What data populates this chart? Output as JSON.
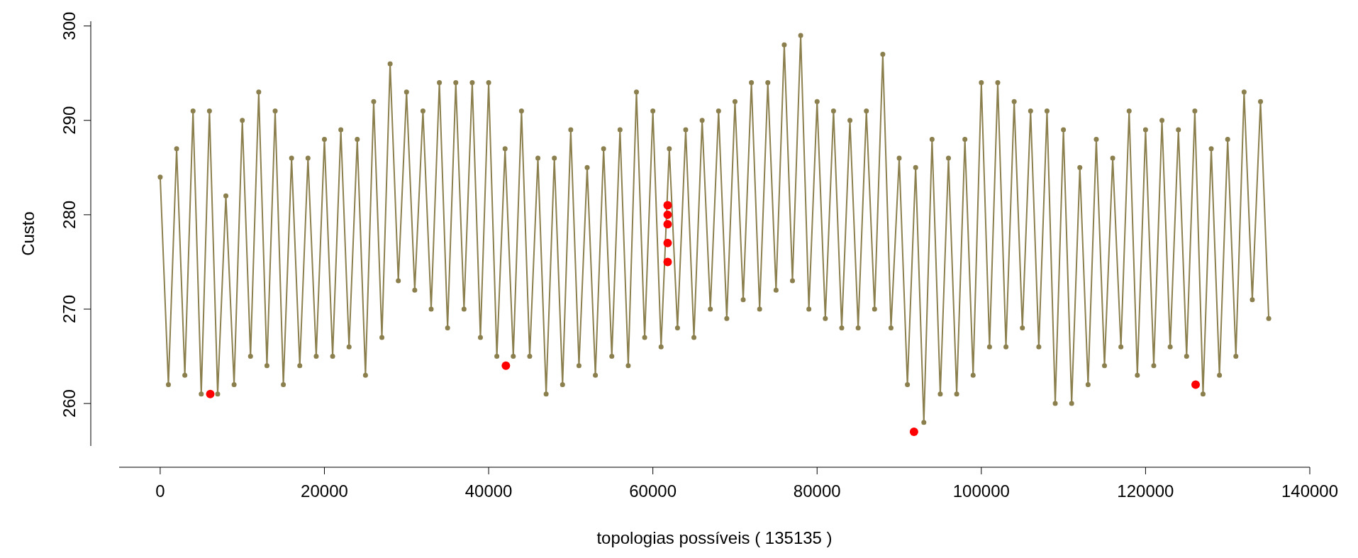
{
  "chart_data": {
    "type": "line",
    "xlabel": "topologias possíveis ( 135135 )",
    "ylabel": "Custo",
    "xlim": [
      -5000,
      140000
    ],
    "ylim": [
      255.5,
      300.5
    ],
    "xticks": [
      0,
      20000,
      40000,
      60000,
      80000,
      100000,
      120000,
      140000
    ],
    "yticks": [
      260,
      270,
      280,
      290,
      300
    ],
    "grid": false,
    "marker": "circle",
    "line_style": "solid",
    "series": [
      {
        "color": "#8b7f4d",
        "x": [
          0,
          1000,
          2000,
          3000,
          4000,
          5000,
          6000,
          7000,
          8000,
          9000,
          10000,
          11000,
          12000,
          13000,
          14000,
          15000,
          16000,
          17000,
          18000,
          19000,
          20000,
          21000,
          22000,
          23000,
          24000,
          25000,
          26000,
          27000,
          28000,
          29000,
          30000,
          31000,
          32000,
          33000,
          34000,
          35000,
          36000,
          37000,
          38000,
          39000,
          40000,
          41000,
          42000,
          43000,
          44000,
          45000,
          46000,
          47000,
          48000,
          49000,
          50000,
          51000,
          52000,
          53000,
          54000,
          55000,
          56000,
          57000,
          58000,
          59000,
          60000,
          61000,
          62000,
          63000,
          64000,
          65000,
          66000,
          67000,
          68000,
          69000,
          70000,
          71000,
          72000,
          73000,
          74000,
          75000,
          76000,
          77000,
          78000,
          79000,
          80000,
          81000,
          82000,
          83000,
          84000,
          85000,
          86000,
          87000,
          88000,
          89000,
          90000,
          91000,
          92000,
          93000,
          94000,
          95000,
          96000,
          97000,
          98000,
          99000,
          100000,
          101000,
          102000,
          103000,
          104000,
          105000,
          106000,
          107000,
          108000,
          109000,
          110000,
          111000,
          112000,
          113000,
          114000,
          115000,
          116000,
          117000,
          118000,
          119000,
          120000,
          121000,
          122000,
          123000,
          124000,
          125000,
          126000,
          127000,
          128000,
          129000,
          130000,
          131000,
          132000,
          133000,
          134000,
          135000
        ],
        "values": [
          284,
          262,
          287,
          263,
          291,
          261,
          291,
          261,
          282,
          262,
          290,
          265,
          293,
          264,
          291,
          262,
          286,
          264,
          286,
          265,
          288,
          265,
          289,
          266,
          288,
          263,
          292,
          267,
          296,
          273,
          293,
          272,
          291,
          270,
          294,
          268,
          294,
          270,
          294,
          267,
          294,
          265,
          287,
          265,
          291,
          265,
          286,
          261,
          286,
          262,
          289,
          264,
          285,
          263,
          287,
          265,
          289,
          264,
          293,
          267,
          291,
          266,
          287,
          268,
          289,
          267,
          290,
          270,
          291,
          269,
          292,
          271,
          294,
          270,
          294,
          272,
          298,
          273,
          299,
          270,
          292,
          269,
          291,
          268,
          290,
          268,
          291,
          270,
          297,
          268,
          286,
          262,
          285,
          258,
          288,
          261,
          286,
          261,
          288,
          263,
          294,
          266,
          294,
          266,
          292,
          268,
          291,
          266,
          291,
          260,
          289,
          260,
          285,
          262,
          288,
          264,
          286,
          266,
          291,
          263,
          289,
          264,
          290,
          266,
          289,
          265,
          291,
          261,
          287,
          263,
          288,
          265,
          293,
          271,
          292,
          269
        ]
      },
      {
        "type": "scatter",
        "color": "#ff0000",
        "x": [
          6100,
          42100,
          61800,
          61800,
          61800,
          61800,
          61800,
          91800,
          126100
        ],
        "values": [
          261,
          264,
          281,
          280,
          279,
          277,
          275,
          257,
          262
        ]
      }
    ]
  }
}
